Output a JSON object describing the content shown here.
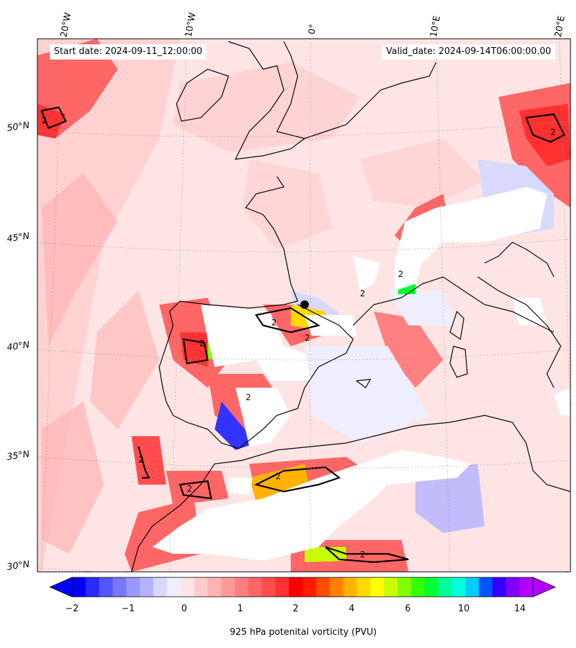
{
  "map": {
    "start_date": "Start date: 2024-09-11_12:00:00",
    "valid_date": "Valid_date: 2024-09-14T06:00:00.00",
    "lon_labels": [
      "20°W",
      "10°W",
      "0°",
      "10°E",
      "20°E"
    ],
    "lat_labels": [
      "50°N",
      "45°N",
      "40°N",
      "35°N",
      "30°N"
    ],
    "contour_label": "2"
  },
  "colorbar": {
    "label": "925 hPa potenital vorticity (PVU)",
    "ticks": [
      "−2",
      "−1",
      "0",
      "1",
      "2",
      "4",
      "6",
      "10",
      "14"
    ],
    "colors": [
      "#0000ff",
      "#2a2aff",
      "#5555ff",
      "#7777ff",
      "#9999ff",
      "#b3b3ff",
      "#d9d9ff",
      "#eeeeff",
      "#ffe6e6",
      "#ffcccc",
      "#ffb3b3",
      "#ff9999",
      "#ff7f7f",
      "#ff6666",
      "#ff4c4c",
      "#ff3333",
      "#ff0000",
      "#ff1a00",
      "#ff4d00",
      "#ff8000",
      "#ffb300",
      "#ffd900",
      "#ffff00",
      "#c8ff00",
      "#80ff00",
      "#33ff00",
      "#00ff33",
      "#00ff99",
      "#00ffdd",
      "#00ccff",
      "#0055ff",
      "#3300ff",
      "#8000ff",
      "#b300ff"
    ]
  },
  "colors": {
    "background_field": "#ffe4e4",
    "low_pv": "#d9d9ff",
    "high_pv": "#ff4040",
    "masked": "#ffffff"
  }
}
